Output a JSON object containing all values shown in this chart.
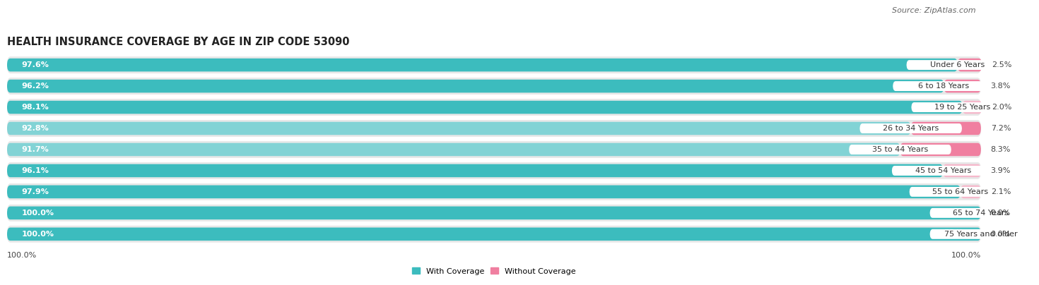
{
  "title": "HEALTH INSURANCE COVERAGE BY AGE IN ZIP CODE 53090",
  "source": "Source: ZipAtlas.com",
  "categories": [
    "Under 6 Years",
    "6 to 18 Years",
    "19 to 25 Years",
    "26 to 34 Years",
    "35 to 44 Years",
    "45 to 54 Years",
    "55 to 64 Years",
    "65 to 74 Years",
    "75 Years and older"
  ],
  "with_coverage": [
    97.6,
    96.2,
    98.1,
    92.8,
    91.7,
    96.1,
    97.9,
    100.0,
    100.0
  ],
  "without_coverage": [
    2.5,
    3.8,
    2.0,
    7.2,
    8.3,
    3.9,
    2.1,
    0.0,
    0.0
  ],
  "with_colors": [
    "#3cbcbe",
    "#3cbcbe",
    "#3cbcbe",
    "#82d3d5",
    "#82d3d5",
    "#3cbcbe",
    "#3cbcbe",
    "#3cbcbe",
    "#3cbcbe"
  ],
  "without_colors": [
    "#f07fa0",
    "#f07fa0",
    "#f5b8cb",
    "#f07fa0",
    "#f07fa0",
    "#f5b8cb",
    "#f5b8cb",
    "#f5b8cb",
    "#f5b8cb"
  ],
  "row_bg_color": "#e8e8e8",
  "background_fig": "#ffffff",
  "title_fontsize": 10.5,
  "cat_label_fontsize": 8,
  "bar_label_fontsize": 8,
  "source_fontsize": 8,
  "legend_label_with": "With Coverage",
  "legend_label_without": "Without Coverage"
}
